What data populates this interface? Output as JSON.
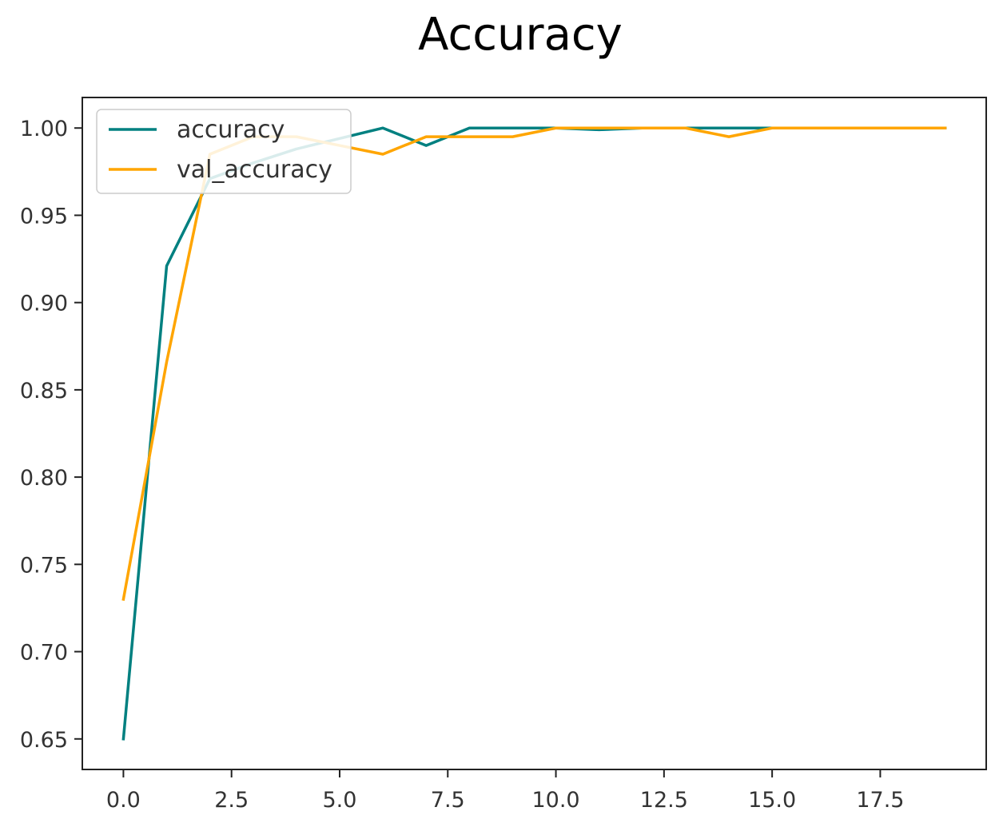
{
  "chart_data": {
    "type": "line",
    "title": "Accuracy",
    "xlabel": "",
    "ylabel": "",
    "x": [
      0,
      1,
      2,
      3,
      4,
      5,
      6,
      7,
      8,
      9,
      10,
      11,
      12,
      13,
      14,
      15,
      16,
      17,
      18,
      19
    ],
    "xlim": [
      -0.95,
      19.95
    ],
    "ylim": [
      0.6325,
      1.0175
    ],
    "x_ticks": [
      0.0,
      2.5,
      5.0,
      7.5,
      10.0,
      12.5,
      15.0,
      17.5
    ],
    "x_tick_labels": [
      "0.0",
      "2.5",
      "5.0",
      "7.5",
      "10.0",
      "12.5",
      "15.0",
      "17.5"
    ],
    "y_ticks": [
      0.65,
      0.7,
      0.75,
      0.8,
      0.85,
      0.9,
      0.95,
      1.0
    ],
    "y_tick_labels": [
      "0.65",
      "0.70",
      "0.75",
      "0.80",
      "0.85",
      "0.90",
      "0.95",
      "1.00"
    ],
    "grid": false,
    "legend": "top-left",
    "series": [
      {
        "name": "accuracy",
        "color": "#008080",
        "values": [
          0.65,
          0.921,
          0.971,
          0.98,
          0.988,
          0.994,
          1.0,
          0.99,
          1.0,
          1.0,
          1.0,
          0.999,
          1.0,
          1.0,
          1.0,
          1.0,
          1.0,
          1.0,
          1.0,
          1.0
        ]
      },
      {
        "name": "val_accuracy",
        "color": "#FFA500",
        "values": [
          0.73,
          0.866,
          0.985,
          0.995,
          0.995,
          0.99,
          0.985,
          0.995,
          0.995,
          0.995,
          1.0,
          1.0,
          1.0,
          1.0,
          0.995,
          1.0,
          1.0,
          1.0,
          1.0,
          1.0
        ]
      }
    ]
  }
}
